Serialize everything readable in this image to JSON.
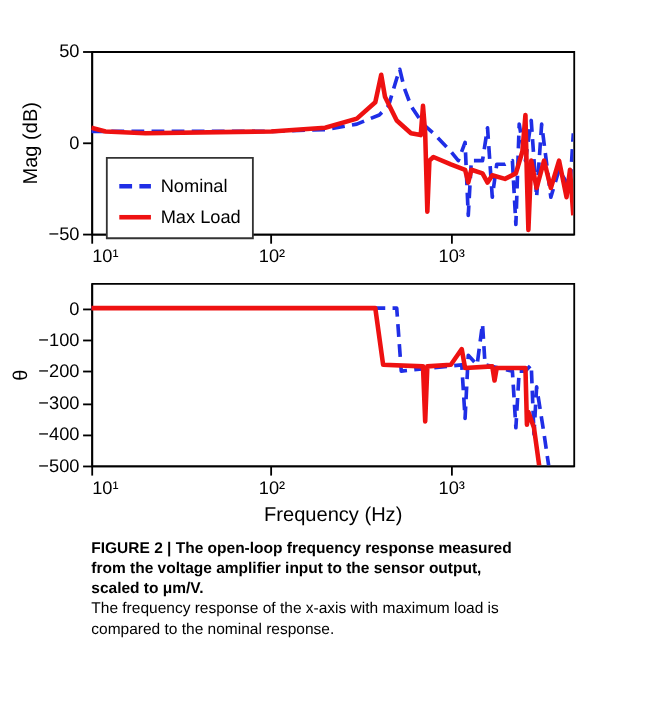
{
  "chart_data": [
    {
      "type": "line",
      "ylabel": "Mag (dB)",
      "xlim": [
        10,
        4800
      ],
      "xticks": [
        {
          "value": 10,
          "label": "10¹"
        },
        {
          "value": 100,
          "label": "10²"
        },
        {
          "value": 1000,
          "label": "10³"
        }
      ],
      "ylim": [
        -50,
        50
      ],
      "yticks": [
        -50,
        0,
        50
      ],
      "log": "x",
      "grid": false,
      "legend": "bottom left",
      "series": [
        {
          "name": "Nominal",
          "color": "#1f2ee6",
          "line_style": "dashed",
          "x": [
            10,
            20,
            50,
            100,
            200,
            300,
            400,
            450,
            500,
            520,
            550,
            600,
            700,
            800,
            1000,
            1100,
            1200,
            1250,
            1300,
            1500,
            1600,
            1700,
            1800,
            2000,
            2200,
            2300,
            2400,
            2600,
            2800,
            3000,
            3200,
            3600,
            4000,
            4600,
            4800
          ],
          "values": [
            6,
            6,
            6,
            6,
            7,
            10,
            15,
            20,
            35,
            40,
            30,
            20,
            10,
            5,
            -5,
            -10,
            0,
            -40,
            -10,
            -10,
            8,
            -30,
            -12,
            -12,
            -10,
            -45,
            10,
            -10,
            12,
            -30,
            10,
            -30,
            -15,
            -25,
            5
          ]
        },
        {
          "name": "Max Load",
          "color": "#ee1111",
          "line_style": "solid",
          "x": [
            10,
            12,
            20,
            100,
            200,
            300,
            380,
            410,
            430,
            500,
            600,
            680,
            700,
            720,
            740,
            760,
            800,
            1000,
            1200,
            1250,
            1300,
            1500,
            1600,
            1700,
            2000,
            2300,
            2500,
            2600,
            2650,
            2700,
            2800,
            3000,
            3300,
            3600,
            4000,
            4400,
            4600,
            4800
          ],
          "values": [
            8,
            6,
            5,
            6,
            8,
            13,
            22,
            37,
            25,
            12,
            5,
            4,
            20,
            5,
            -38,
            -10,
            -8,
            -12,
            -15,
            -22,
            -15,
            -17,
            -22,
            -18,
            -20,
            -17,
            -5,
            15,
            -20,
            -48,
            -10,
            -25,
            -10,
            -25,
            -10,
            -30,
            -15,
            -40
          ]
        }
      ]
    },
    {
      "type": "line",
      "ylabel": "θ",
      "xlabel": "Frequency (Hz)",
      "xlim": [
        10,
        4800
      ],
      "xticks": [
        {
          "value": 10,
          "label": "10¹"
        },
        {
          "value": 100,
          "label": "10²"
        },
        {
          "value": 1000,
          "label": "10³"
        }
      ],
      "ylim": [
        -500,
        80
      ],
      "yticks": [
        -500,
        -400,
        -300,
        -200,
        -100,
        0
      ],
      "log": "x",
      "grid": false,
      "series": [
        {
          "color": "#1f2ee6",
          "line_style": "dashed",
          "x": [
            10,
            100,
            480,
            500,
            530,
            1150,
            1200,
            1250,
            1400,
            1500,
            1550,
            2200,
            2300,
            2400,
            2600,
            2800,
            2900,
            3000,
            3300,
            3500
          ],
          "values": [
            0,
            0,
            0,
            0,
            -200,
            -180,
            -350,
            -150,
            -180,
            -50,
            -180,
            -200,
            -380,
            -200,
            -200,
            -180,
            -400,
            -250,
            -400,
            -500
          ]
        },
        {
          "color": "#ee1111",
          "line_style": "solid",
          "x": [
            10,
            100,
            380,
            420,
            700,
            720,
            740,
            1000,
            1150,
            1200,
            1700,
            1750,
            1800,
            2600,
            2650,
            2700,
            2900,
            3100
          ],
          "values": [
            0,
            0,
            0,
            -180,
            -185,
            -360,
            -185,
            -180,
            -130,
            -190,
            -185,
            -230,
            -190,
            -190,
            -370,
            -330,
            -380,
            -500
          ]
        }
      ],
      "annotations": [
        "FIGURE 2 | The open-loop frequency response measured from the voltage amplifier input to the sensor output, scaled to μm/V.",
        "The frequency response of the x-axis with maximum load is compared to the nominal response."
      ]
    }
  ]
}
